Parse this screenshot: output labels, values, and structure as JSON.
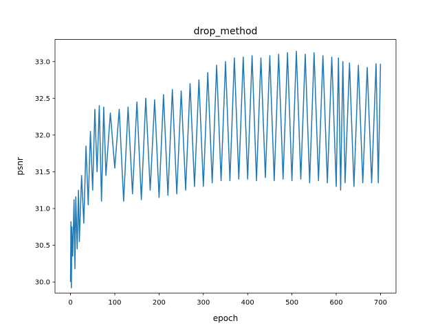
{
  "chart_data": {
    "type": "line",
    "title": "drop_method",
    "xlabel": "epoch",
    "ylabel": "psnr",
    "xlim": [
      -35,
      735
    ],
    "ylim": [
      29.85,
      33.3
    ],
    "xticks": [
      0,
      100,
      200,
      300,
      400,
      500,
      600,
      700
    ],
    "yticks": [
      30.0,
      30.5,
      31.0,
      31.5,
      32.0,
      32.5,
      33.0
    ],
    "xtick_labels": [
      "0",
      "100",
      "200",
      "300",
      "400",
      "500",
      "600",
      "700"
    ],
    "ytick_labels": [
      "30.0",
      "30.5",
      "31.0",
      "31.5",
      "32.0",
      "32.5",
      "33.0"
    ],
    "grid": false,
    "legend": "none",
    "series": [
      {
        "color": "#1f77b4",
        "x": [
          0,
          1,
          2,
          3,
          5,
          8,
          10,
          12,
          15,
          18,
          20,
          25,
          30,
          35,
          40,
          45,
          50,
          55,
          60,
          65,
          70,
          75,
          80,
          90,
          100,
          110,
          120,
          130,
          140,
          150,
          160,
          170,
          180,
          190,
          200,
          210,
          220,
          230,
          240,
          250,
          260,
          270,
          280,
          290,
          300,
          310,
          320,
          330,
          340,
          350,
          360,
          370,
          380,
          390,
          400,
          410,
          420,
          430,
          440,
          450,
          460,
          470,
          480,
          490,
          500,
          510,
          520,
          530,
          540,
          550,
          560,
          570,
          580,
          590,
          600,
          605,
          610,
          615,
          620,
          630,
          640,
          650,
          660,
          670,
          680,
          690,
          695,
          700
        ],
        "y": [
          30.0,
          30.82,
          29.92,
          30.75,
          30.35,
          31.12,
          30.18,
          31.16,
          30.45,
          31.25,
          30.55,
          31.45,
          30.8,
          31.85,
          31.05,
          32.05,
          31.25,
          32.35,
          31.5,
          32.4,
          31.1,
          32.38,
          31.45,
          32.3,
          31.55,
          32.35,
          31.1,
          32.38,
          31.2,
          32.45,
          31.12,
          32.5,
          31.25,
          32.48,
          31.15,
          32.55,
          31.18,
          32.62,
          31.2,
          32.6,
          31.25,
          32.7,
          31.3,
          32.75,
          31.3,
          32.85,
          31.35,
          32.95,
          31.38,
          33.0,
          31.38,
          33.05,
          31.4,
          33.06,
          31.4,
          33.08,
          31.38,
          33.05,
          31.42,
          33.08,
          31.38,
          33.1,
          31.4,
          33.12,
          31.38,
          33.14,
          31.4,
          33.1,
          31.35,
          33.12,
          31.38,
          33.08,
          31.35,
          33.06,
          31.3,
          33.05,
          31.25,
          33.0,
          31.35,
          32.98,
          31.3,
          32.95,
          31.35,
          32.92,
          31.35,
          32.97,
          31.35,
          32.97
        ]
      }
    ]
  }
}
